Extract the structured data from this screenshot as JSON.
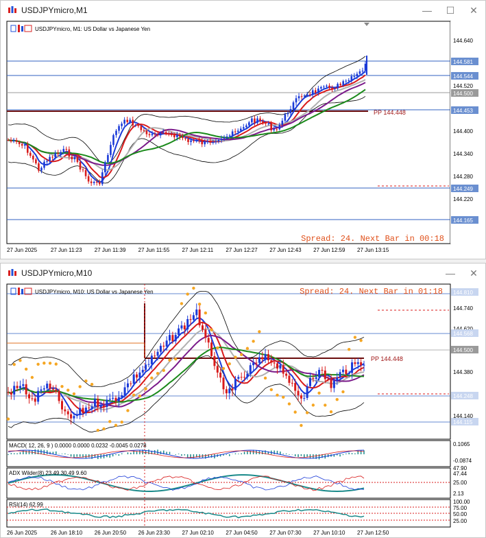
{
  "window1": {
    "title": "USDJPYmicro,M1",
    "header": "USDJPYmicro, M1:  US Dollar vs Japanese Yen",
    "spread_text": "Spread: 24. Next Bar in 00:18",
    "pivot_label": "PP 144.448",
    "price_ticks": [
      "144.640",
      "144.520",
      "144.400",
      "144.340",
      "144.280",
      "144.220"
    ],
    "price_tags": [
      {
        "label": "144.581",
        "color": "#6a8fd0"
      },
      {
        "label": "144.544",
        "color": "#6a8fd0"
      },
      {
        "label": "144.500",
        "color": "#9a9a9a"
      },
      {
        "label": "144.453",
        "color": "#6a8fd0"
      },
      {
        "label": "144.249",
        "color": "#6a8fd0"
      },
      {
        "label": "144.165",
        "color": "#6a8fd0"
      }
    ],
    "time_labels": [
      "27 Jun 2025",
      "27 Jun 11:23",
      "27 Jun 11:39",
      "27 Jun 11:55",
      "27 Jun 12:11",
      "27 Jun 12:27",
      "27 Jun 12:43",
      "27 Jun 12:59",
      "27 Jun 13:15"
    ]
  },
  "window2": {
    "title": "USDJPYmicro,M10",
    "header": "USDJPYmicro, M10:  US Dollar vs Japanese Yen",
    "spread_text": "Spread: 24. Next Bar in 01:18",
    "pivot_label": "PP 144.448",
    "price_ticks": [
      "144.740",
      "144.620",
      "144.380",
      "144.140"
    ],
    "price_tags": [
      {
        "label": "144.810",
        "color": "#6a8fd0"
      },
      {
        "label": "144.568",
        "color": "#6a8fd0"
      },
      {
        "label": "144.500",
        "color": "#9a9a9a"
      },
      {
        "label": "144.248",
        "color": "#6a8fd0"
      },
      {
        "label": "144.115",
        "color": "#6a8fd0"
      }
    ],
    "macd": {
      "label": "MACD( 12, 26, 9 ) 0.0000 0.0000 0.0232 -0.0045 0.0278",
      "ticks": [
        "0.1065",
        "-0.0874"
      ]
    },
    "adx": {
      "label": "ADX Wilder(8) 23.49 30.49 9.60",
      "ticks": [
        "47.90",
        "47.44",
        "25.00",
        "2.13"
      ]
    },
    "rsi": {
      "label": "RSI(14) 62.99",
      "ticks": [
        "100.00",
        "75.00",
        "50.00",
        "25.00"
      ]
    },
    "time_labels": [
      "26 Jun 2025",
      "26 Jun 18:10",
      "26 Jun 20:50",
      "26 Jun 23:30",
      "27 Jun 02:10",
      "27 Jun 04:50",
      "27 Jun 07:30",
      "27 Jun 10:10",
      "27 Jun 12:50"
    ]
  },
  "colors": {
    "bull": "#1a3ad8",
    "bear": "#d81a1a",
    "tag_blue": "#6a8fd0",
    "spread": "#e0501a",
    "pivot": "#a01818"
  }
}
